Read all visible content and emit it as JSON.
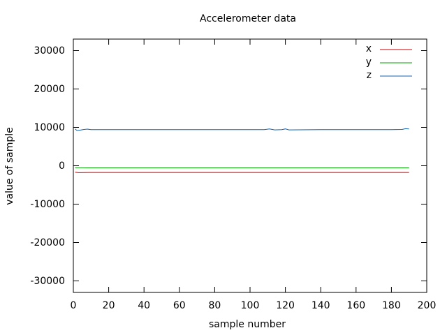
{
  "chart_data": {
    "type": "line",
    "title": "Accelerometer data",
    "xlabel": "sample number",
    "ylabel": "value of sample",
    "xlim": [
      0,
      200
    ],
    "ylim": [
      -33000,
      33000
    ],
    "xticks": [
      0,
      20,
      40,
      60,
      80,
      100,
      120,
      140,
      160,
      180,
      200
    ],
    "yticks": [
      -30000,
      -20000,
      -10000,
      0,
      10000,
      20000,
      30000
    ],
    "grid": false,
    "legend_position": "top-right",
    "series": [
      {
        "name": "x",
        "color": "#cc0000",
        "points": [
          [
            1,
            -1700
          ],
          [
            3,
            -1800
          ],
          [
            10,
            -1750
          ],
          [
            50,
            -1750
          ],
          [
            100,
            -1750
          ],
          [
            150,
            -1750
          ],
          [
            190,
            -1750
          ]
        ]
      },
      {
        "name": "y",
        "color": "#00aa00",
        "points": [
          [
            1,
            -500
          ],
          [
            10,
            -550
          ],
          [
            50,
            -550
          ],
          [
            100,
            -550
          ],
          [
            150,
            -550
          ],
          [
            190,
            -550
          ]
        ]
      },
      {
        "name": "z",
        "color": "#1060b0",
        "points": [
          [
            1,
            9600
          ],
          [
            2,
            9200
          ],
          [
            4,
            9300
          ],
          [
            6,
            9450
          ],
          [
            8,
            9550
          ],
          [
            10,
            9400
          ],
          [
            20,
            9400
          ],
          [
            40,
            9400
          ],
          [
            60,
            9400
          ],
          [
            80,
            9400
          ],
          [
            100,
            9400
          ],
          [
            108,
            9400
          ],
          [
            111,
            9600
          ],
          [
            114,
            9350
          ],
          [
            118,
            9400
          ],
          [
            120,
            9600
          ],
          [
            122,
            9350
          ],
          [
            140,
            9400
          ],
          [
            160,
            9400
          ],
          [
            180,
            9400
          ],
          [
            186,
            9450
          ],
          [
            188,
            9650
          ],
          [
            190,
            9600
          ]
        ]
      }
    ]
  }
}
